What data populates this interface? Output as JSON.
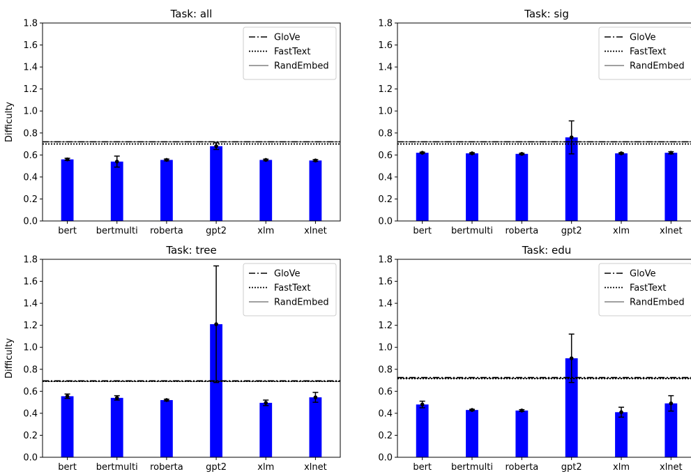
{
  "chart_data": [
    {
      "type": "bar",
      "title": "Task: all",
      "ylabel": "Difficulty",
      "xlabel": "",
      "ylim": [
        0,
        1.8
      ],
      "yticks": [
        "0.0",
        "0.2",
        "0.4",
        "0.6",
        "0.8",
        "1.0",
        "1.2",
        "1.4",
        "1.6",
        "1.8"
      ],
      "categories": [
        "bert",
        "bertmulti",
        "roberta",
        "gpt2",
        "xlm",
        "xlnet"
      ],
      "values": [
        0.56,
        0.54,
        0.555,
        0.68,
        0.555,
        0.55
      ],
      "errors": [
        0.01,
        0.05,
        0.008,
        0.03,
        0.007,
        0.008
      ],
      "reference_lines": [
        {
          "name": "GloVe",
          "value": 0.72,
          "style": "dashdot"
        },
        {
          "name": "FastText",
          "value": 0.7,
          "style": "dotted"
        },
        {
          "name": "RandEmbed",
          "value": 0.72,
          "style": "solid-thin"
        }
      ],
      "legend_position": "top-right",
      "grid": false
    },
    {
      "type": "bar",
      "title": "Task: sig",
      "ylabel": "",
      "xlabel": "",
      "ylim": [
        0,
        1.8
      ],
      "yticks": [
        "0.0",
        "0.2",
        "0.4",
        "0.6",
        "0.8",
        "1.0",
        "1.2",
        "1.4",
        "1.6",
        "1.8"
      ],
      "categories": [
        "bert",
        "bertmulti",
        "roberta",
        "gpt2",
        "xlm",
        "xlnet"
      ],
      "values": [
        0.62,
        0.615,
        0.61,
        0.76,
        0.615,
        0.62
      ],
      "errors": [
        0.006,
        0.006,
        0.006,
        0.15,
        0.006,
        0.01
      ],
      "reference_lines": [
        {
          "name": "GloVe",
          "value": 0.72,
          "style": "dashdot"
        },
        {
          "name": "FastText",
          "value": 0.7,
          "style": "dotted"
        },
        {
          "name": "RandEmbed",
          "value": 0.72,
          "style": "solid-thin"
        }
      ],
      "legend_position": "top-right",
      "grid": false
    },
    {
      "type": "bar",
      "title": "Task: tree",
      "ylabel": "Difficulty",
      "xlabel": "",
      "ylim": [
        0,
        1.8
      ],
      "yticks": [
        "0.0",
        "0.2",
        "0.4",
        "0.6",
        "0.8",
        "1.0",
        "1.2",
        "1.4",
        "1.6",
        "1.8"
      ],
      "categories": [
        "bert",
        "bertmulti",
        "roberta",
        "gpt2",
        "xlm",
        "xlnet"
      ],
      "values": [
        0.555,
        0.54,
        0.52,
        1.21,
        0.495,
        0.545
      ],
      "errors": [
        0.02,
        0.02,
        0.008,
        0.53,
        0.025,
        0.045
      ],
      "reference_lines": [
        {
          "name": "GloVe",
          "value": 0.695,
          "style": "dashdot"
        },
        {
          "name": "FastText",
          "value": 0.69,
          "style": "dotted"
        },
        {
          "name": "RandEmbed",
          "value": 0.69,
          "style": "solid-thin"
        }
      ],
      "legend_position": "top-right",
      "grid": false
    },
    {
      "type": "bar",
      "title": "Task: edu",
      "ylabel": "",
      "xlabel": "",
      "ylim": [
        0,
        1.8
      ],
      "yticks": [
        "0.0",
        "0.2",
        "0.4",
        "0.6",
        "0.8",
        "1.0",
        "1.2",
        "1.4",
        "1.6",
        "1.8"
      ],
      "categories": [
        "bert",
        "bertmulti",
        "roberta",
        "gpt2",
        "xlm",
        "xlnet"
      ],
      "values": [
        0.48,
        0.43,
        0.425,
        0.9,
        0.41,
        0.49
      ],
      "errors": [
        0.03,
        0.006,
        0.008,
        0.22,
        0.045,
        0.07
      ],
      "reference_lines": [
        {
          "name": "GloVe",
          "value": 0.725,
          "style": "dashdot"
        },
        {
          "name": "FastText",
          "value": 0.715,
          "style": "dotted"
        },
        {
          "name": "RandEmbed",
          "value": 0.72,
          "style": "solid-thin"
        }
      ],
      "legend_position": "top-right",
      "grid": false
    }
  ],
  "colors": {
    "bar": "#0000ff",
    "axis": "#000000",
    "errorbar": "#000000",
    "background": "#ffffff"
  }
}
